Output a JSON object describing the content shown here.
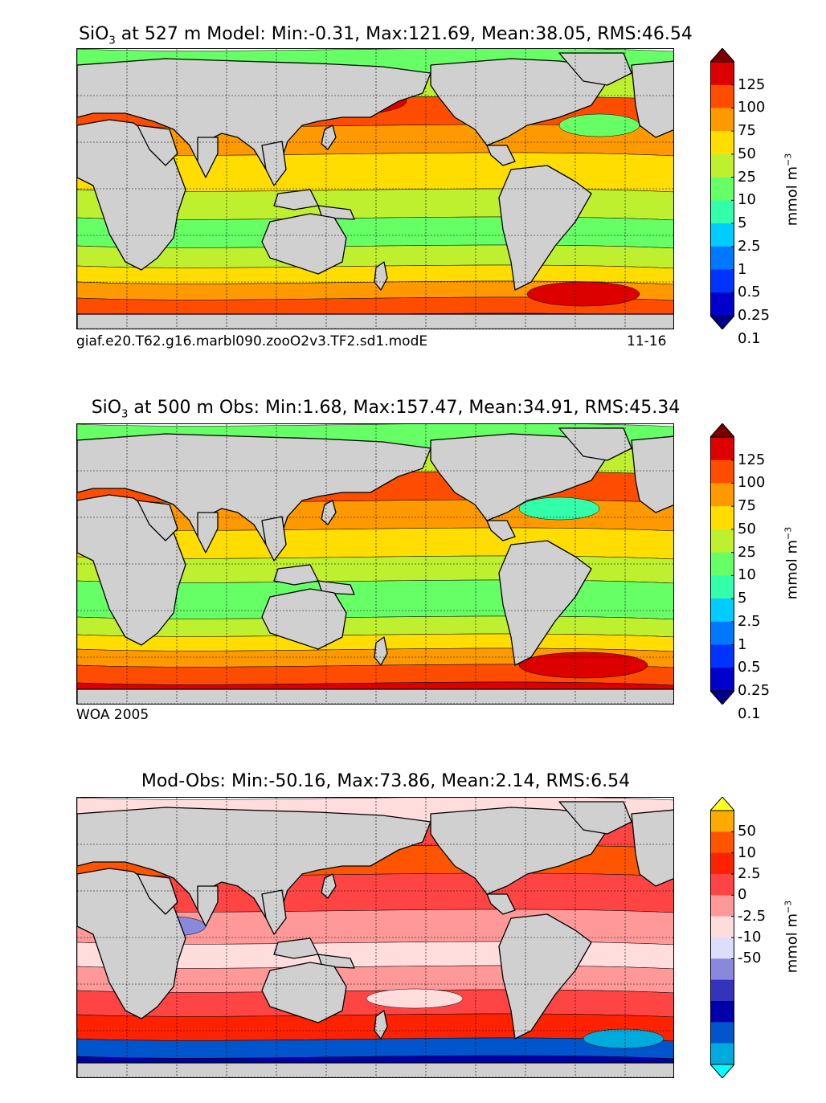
{
  "panels": [
    {
      "title_prefix": "SiO",
      "title_sub": "3",
      "title_rest": " at 527 m Model: Min:-0.31, Max:121.69, Mean:38.05, RMS:46.54",
      "caption_left": "giaf.e20.T62.g16.marbl090.zooO2v3.TF2.sd1.modE",
      "caption_right": "11-16",
      "colorbar": {
        "ticks": [
          "125",
          "100",
          "75",
          "50",
          "25",
          "10",
          "5",
          "2.5",
          "1",
          "0.5",
          "0.25",
          "0.1"
        ],
        "colors": [
          "#7a0000",
          "#dd0000",
          "#ff4d00",
          "#ff9900",
          "#ffdd00",
          "#bff030",
          "#66ff66",
          "#33ffaa",
          "#00ccff",
          "#0077ff",
          "#0033ff",
          "#0000cc",
          "#000088"
        ],
        "unit": "mmol m",
        "unit_sup": "−3"
      }
    },
    {
      "title_prefix": "SiO",
      "title_sub": "3",
      "title_rest": " at 500 m Obs: Min:1.68, Max:157.47, Mean:34.91, RMS:45.34",
      "caption_left": "WOA 2005",
      "caption_right": "",
      "colorbar": {
        "ticks": [
          "125",
          "100",
          "75",
          "50",
          "25",
          "10",
          "5",
          "2.5",
          "1",
          "0.5",
          "0.25",
          "0.1"
        ],
        "colors": [
          "#7a0000",
          "#dd0000",
          "#ff4d00",
          "#ff9900",
          "#ffdd00",
          "#bff030",
          "#66ff66",
          "#33ffaa",
          "#00ccff",
          "#0077ff",
          "#0033ff",
          "#0000cc",
          "#000088"
        ],
        "unit": "mmol m",
        "unit_sup": "−3"
      }
    },
    {
      "title_prefix": "",
      "title_sub": "",
      "title_rest": "Mod-Obs: Min:-50.16, Max:73.86, Mean:2.14, RMS:6.54",
      "caption_left": "",
      "caption_right": "",
      "colorbar": {
        "ticks": [
          "50",
          "10",
          "2.5",
          "0",
          "-2.5",
          "-10",
          "-50"
        ],
        "colors": [
          "#ffff22",
          "#ffaa00",
          "#ff5500",
          "#ff2200",
          "#ff4444",
          "#ff9999",
          "#ffdddd",
          "#ddddff",
          "#8888dd",
          "#3333bb",
          "#0000aa",
          "#0055cc",
          "#00aadd",
          "#00ffff"
        ],
        "unit": "mmol m",
        "unit_sup": "−3"
      }
    }
  ]
}
